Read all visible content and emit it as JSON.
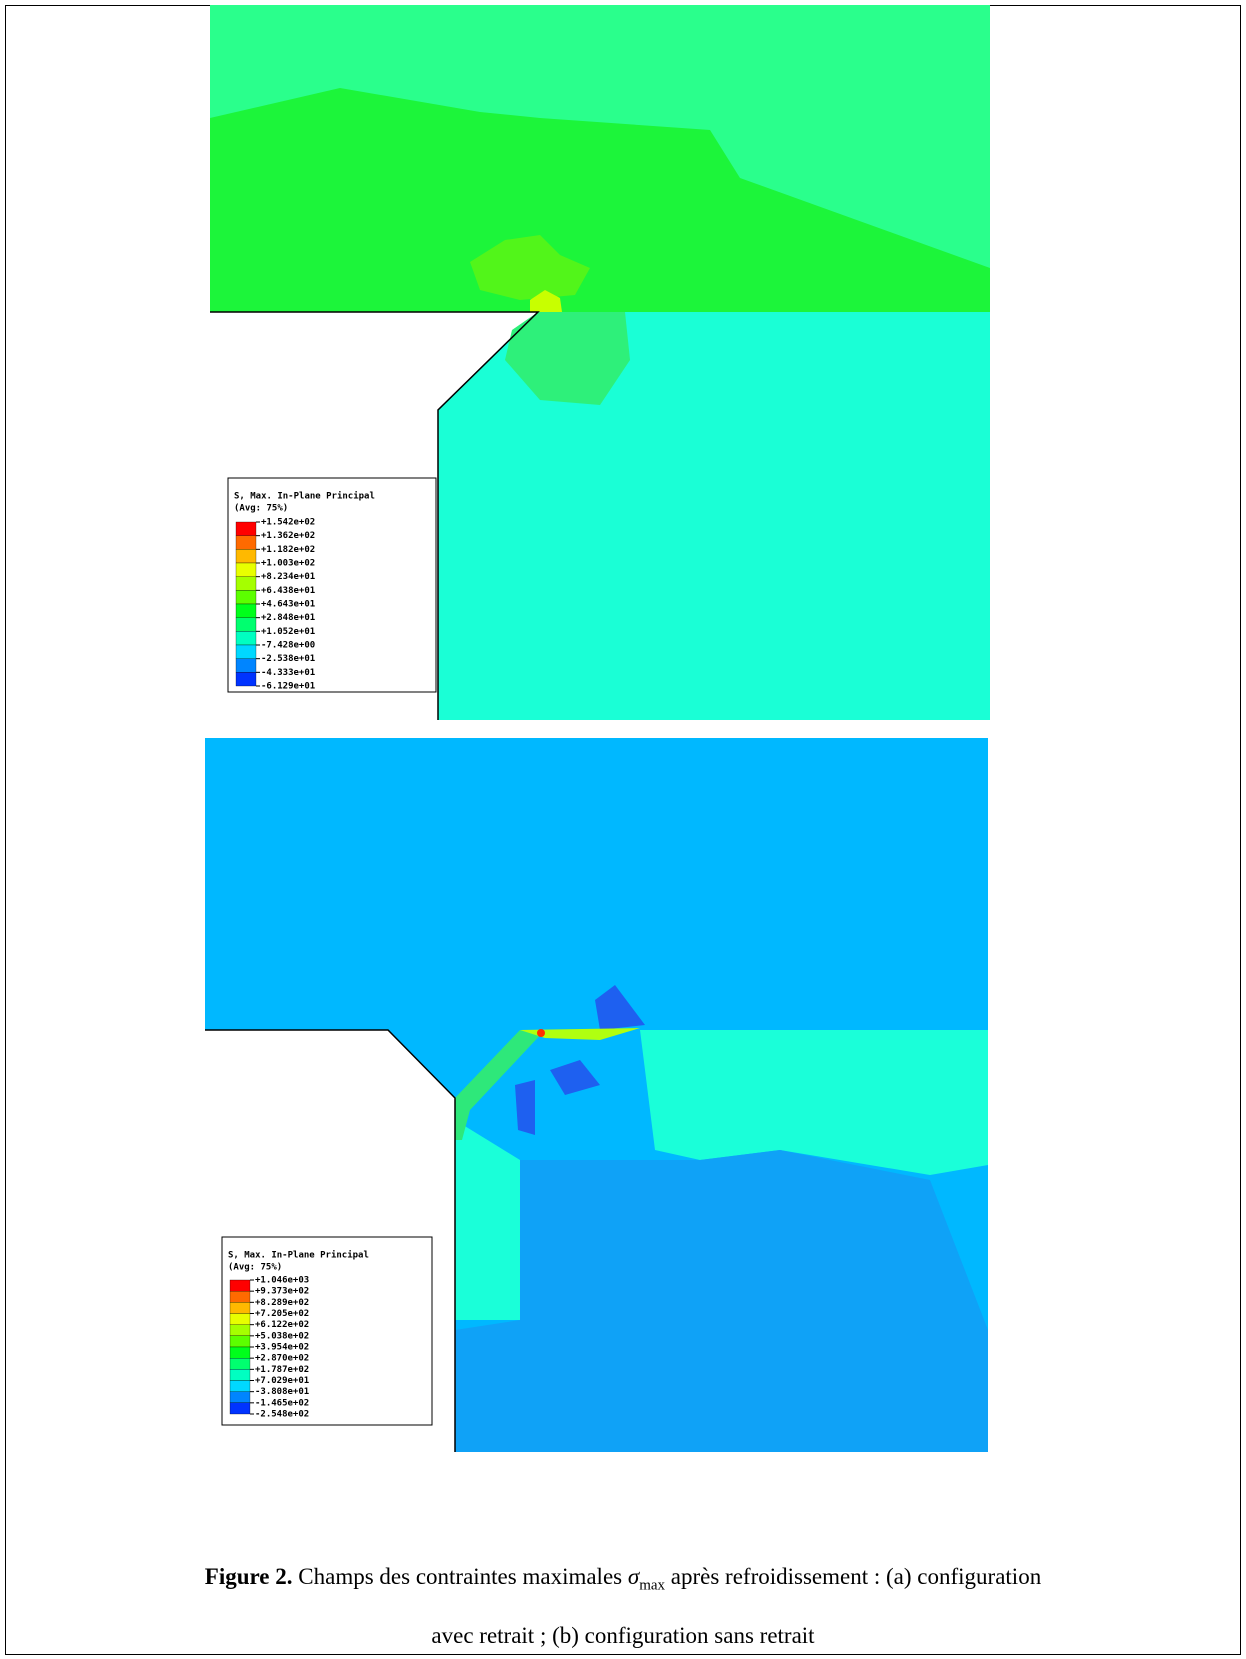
{
  "figure": {
    "panels": [
      {
        "legend": {
          "title": "S, Max. In-Plane Principal",
          "subtitle": "(Avg: 75%)",
          "levels": [
            "+1.542e+02",
            "+1.362e+02",
            "+1.182e+02",
            "+1.003e+02",
            "+8.234e+01",
            "+6.438e+01",
            "+4.643e+01",
            "+2.848e+01",
            "+1.052e+01",
            "-7.428e+00",
            "-2.538e+01",
            "-4.333e+01",
            "-6.129e+01"
          ],
          "colors": [
            "#ff0000",
            "#ff6a00",
            "#ffb900",
            "#e8ff00",
            "#a5ff00",
            "#5cff00",
            "#00ff1b",
            "#00ff6f",
            "#00ffc1",
            "#00d8ff",
            "#0085ff",
            "#0033ff"
          ]
        }
      },
      {
        "legend": {
          "title": "S, Max. In-Plane Principal",
          "subtitle": "(Avg: 75%)",
          "levels": [
            "+1.046e+03",
            "+9.373e+02",
            "+8.289e+02",
            "+7.205e+02",
            "+6.122e+02",
            "+5.038e+02",
            "+3.954e+02",
            "+2.870e+02",
            "+1.787e+02",
            "+7.029e+01",
            "-3.808e+01",
            "-1.465e+02",
            "-2.548e+02"
          ],
          "colors": [
            "#ff0000",
            "#ff6a00",
            "#ffb900",
            "#e8ff00",
            "#a5ff00",
            "#5cff00",
            "#00ff1b",
            "#00ff6f",
            "#00ffc1",
            "#00d8ff",
            "#0085ff",
            "#0033ff"
          ]
        }
      }
    ],
    "caption": {
      "label": "Figure 2.",
      "text_before": "Champs des contraintes maximales",
      "symbol": "σ",
      "subscript": "max",
      "line1_after": "après refroidissement : (a) configuration",
      "line2": "avec retrait ; (b) configuration sans retrait"
    }
  }
}
